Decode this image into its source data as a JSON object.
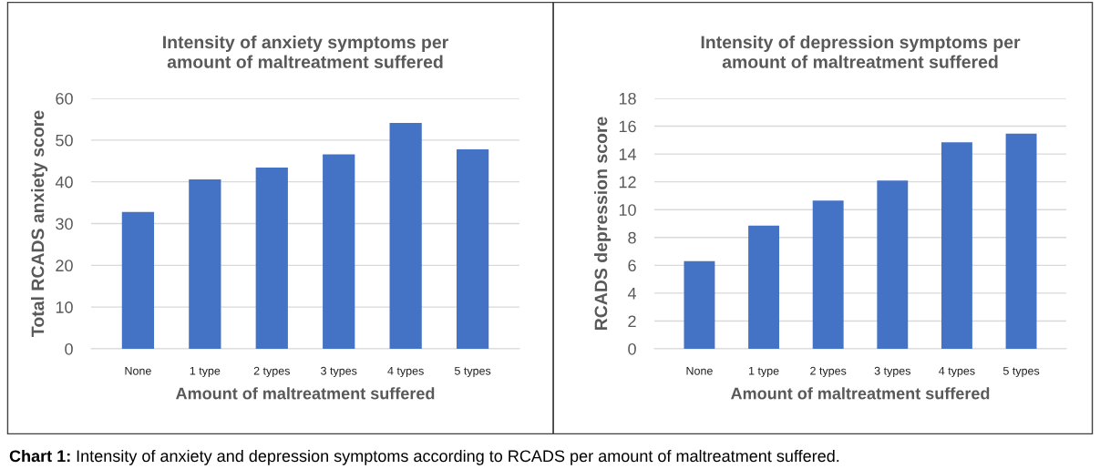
{
  "chart_data": [
    {
      "type": "bar",
      "title": "Intensity of anxiety symptoms per\namount of maltreatment suffered",
      "xlabel": "Amount of maltreatment suffered",
      "ylabel": "Total RCADS anxiety score",
      "categories": [
        "None",
        "1 type",
        "2 types",
        "3 types",
        "4 types",
        "5 types"
      ],
      "values": [
        32.8,
        40.6,
        43.4,
        46.6,
        54.1,
        47.8
      ],
      "color": "#4472c4",
      "ylim": [
        0,
        60
      ],
      "yticks": [
        0,
        10,
        20,
        30,
        40,
        50,
        60
      ],
      "grid": "y",
      "annotations": [
        "Chart 1:",
        "Intensity of anxiety and depression symptoms according to RCADS per amount of maltreatment suffered."
      ]
    },
    {
      "type": "bar",
      "title": "Intensity of depression symptoms per\namount of maltreatment suffered",
      "xlabel": "Amount of maltreatment suffered",
      "ylabel": "RCADS depression score",
      "categories": [
        "None",
        "1 type",
        "2 types",
        "3 types",
        "4 types",
        "5 types"
      ],
      "values": [
        6.3,
        8.85,
        10.66,
        12.1,
        14.84,
        15.47
      ],
      "color": "#4472c4",
      "ylim": [
        0,
        18
      ],
      "yticks": [
        0,
        2,
        4,
        6,
        8,
        10,
        12,
        14,
        16,
        18
      ],
      "grid": "y"
    }
  ]
}
